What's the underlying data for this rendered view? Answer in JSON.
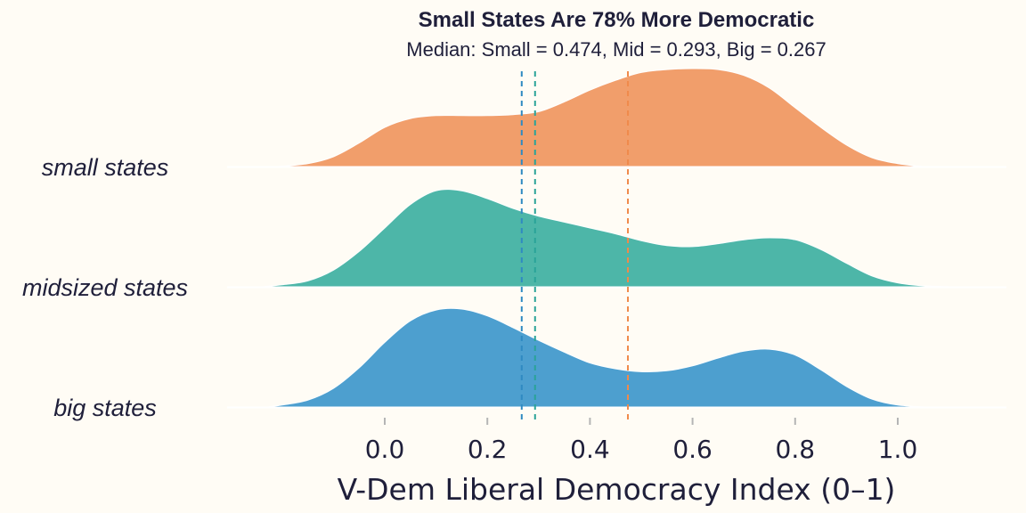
{
  "chart_data": {
    "type": "area",
    "subtype": "ridgeline-density",
    "title": "Small States Are 78% More Democratic",
    "subtitle": "Median: Small = 0.474, Mid = 0.293, Big = 0.267",
    "xlabel": "V-Dem Liberal Democracy Index (0–1)",
    "ylabel": "",
    "xlim": [
      -0.3,
      1.2
    ],
    "x_ticks": [
      0.0,
      0.2,
      0.4,
      0.6,
      0.8,
      1.0
    ],
    "x_tick_labels": [
      "0.0",
      "0.2",
      "0.4",
      "0.6",
      "0.8",
      "1.0"
    ],
    "grid": false,
    "legend": "none",
    "series": [
      {
        "name": "small states",
        "color": "#f19e6b",
        "median": 0.474,
        "median_color": "#f08a4b",
        "x": [
          -0.21,
          -0.15,
          -0.1,
          -0.05,
          0.0,
          0.05,
          0.1,
          0.15,
          0.2,
          0.25,
          0.3,
          0.35,
          0.4,
          0.45,
          0.5,
          0.55,
          0.6,
          0.65,
          0.7,
          0.75,
          0.8,
          0.85,
          0.9,
          0.95,
          1.0,
          1.05
        ],
        "density": [
          0.0,
          0.03,
          0.1,
          0.24,
          0.4,
          0.49,
          0.52,
          0.52,
          0.52,
          0.53,
          0.56,
          0.66,
          0.78,
          0.88,
          0.96,
          0.99,
          1.0,
          0.99,
          0.93,
          0.8,
          0.6,
          0.4,
          0.22,
          0.09,
          0.03,
          0.0
        ]
      },
      {
        "name": "midsized states",
        "color": "#4db6a8",
        "median": 0.293,
        "median_color": "#2aa398",
        "x": [
          -0.24,
          -0.2,
          -0.15,
          -0.1,
          -0.05,
          0.0,
          0.05,
          0.1,
          0.15,
          0.2,
          0.25,
          0.3,
          0.35,
          0.4,
          0.45,
          0.5,
          0.55,
          0.6,
          0.65,
          0.7,
          0.75,
          0.8,
          0.85,
          0.9,
          0.95,
          1.0,
          1.05,
          1.11
        ],
        "density": [
          0.0,
          0.02,
          0.06,
          0.17,
          0.36,
          0.6,
          0.84,
          0.98,
          0.98,
          0.9,
          0.8,
          0.72,
          0.66,
          0.6,
          0.54,
          0.47,
          0.42,
          0.41,
          0.44,
          0.48,
          0.5,
          0.48,
          0.38,
          0.24,
          0.11,
          0.04,
          0.01,
          0.0
        ]
      },
      {
        "name": "big states",
        "color": "#4d9fcf",
        "median": 0.267,
        "median_color": "#2f8ac2",
        "x": [
          -0.23,
          -0.2,
          -0.15,
          -0.1,
          -0.05,
          0.0,
          0.05,
          0.1,
          0.15,
          0.2,
          0.25,
          0.3,
          0.35,
          0.4,
          0.45,
          0.5,
          0.55,
          0.6,
          0.65,
          0.7,
          0.75,
          0.8,
          0.85,
          0.9,
          0.95,
          1.0,
          1.06
        ],
        "density": [
          0.0,
          0.02,
          0.07,
          0.19,
          0.4,
          0.66,
          0.88,
          0.99,
          1.0,
          0.93,
          0.81,
          0.68,
          0.56,
          0.45,
          0.39,
          0.36,
          0.37,
          0.42,
          0.5,
          0.57,
          0.59,
          0.53,
          0.38,
          0.21,
          0.08,
          0.02,
          0.0
        ]
      }
    ]
  }
}
